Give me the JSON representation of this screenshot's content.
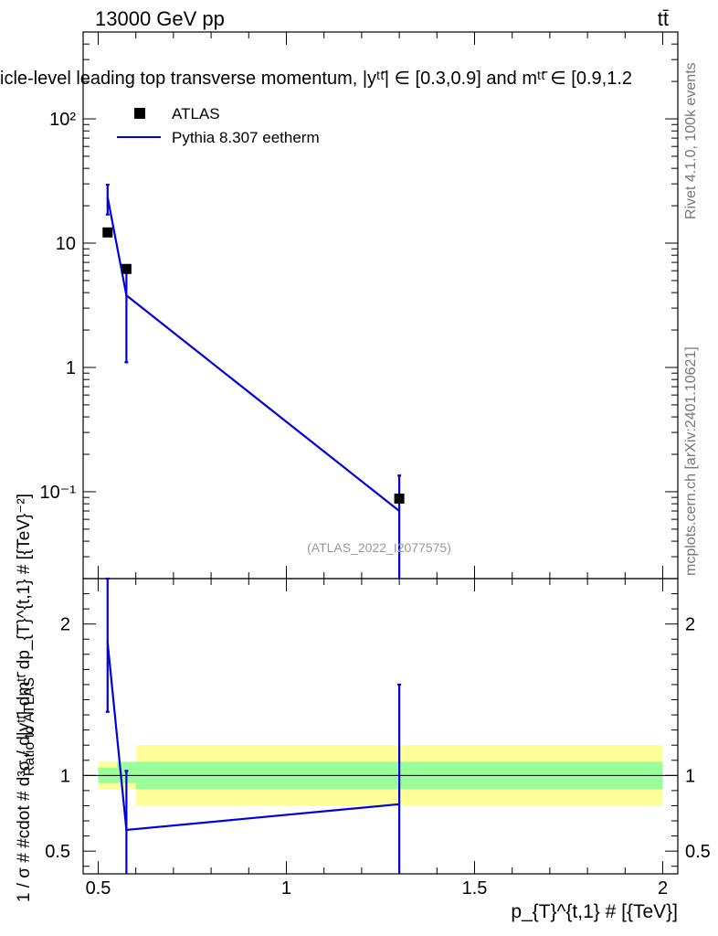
{
  "header": {
    "left": "13000 GeV pp",
    "right": "tt̄"
  },
  "title": "icle-level leading top transverse momentum, |yᵗᵗ̄| ∈ [0.3,0.9] and mᵗᵗ̄ ∈ [0.9,1.2",
  "side_labels": {
    "rivet": "Rivet 4.1.0,  100k events",
    "mcplots": "mcplots.cern.ch [arXiv:2401.10621]"
  },
  "watermark": "(ATLAS_2022_I2077575)",
  "legend": {
    "data_label": "ATLAS",
    "mc_label": "Pythia 8.307 eetherm"
  },
  "colors": {
    "mc_line": "#0000dd",
    "band_inner": "#99ff99",
    "band_outer": "#ffff99",
    "data_marker": "#000000"
  },
  "chart_data": [
    {
      "type": "scatter",
      "panel": "main",
      "ylabel": "1 / σ # #cdot # d³σ / d|yᵗᵗ̄| dmᵗᵗ̄ dp_{T}^{t,1} # [{TeV}⁻²]",
      "yscale": "log",
      "ylim": [
        0.02,
        500
      ],
      "xlim": [
        0.46,
        2.04
      ],
      "ytick_labels": [
        "10⁻¹",
        "1",
        "10",
        "10²"
      ],
      "yticks": [
        0.1,
        1,
        10,
        100
      ],
      "series": [
        {
          "name": "ATLAS",
          "style": "markers",
          "x": [
            0.525,
            0.575,
            1.3
          ],
          "y": [
            12.2,
            6.2,
            0.088
          ]
        },
        {
          "name": "Pythia 8.307 eetherm",
          "style": "line",
          "x": [
            0.525,
            0.575,
            1.3
          ],
          "y": [
            23.5,
            3.8,
            0.07
          ],
          "err_low": [
            17.0,
            1.1,
            0.0
          ],
          "err_high": [
            29.5,
            6.5,
            0.135
          ]
        }
      ]
    },
    {
      "type": "line",
      "panel": "ratio",
      "ylabel": "Ratio to ATLAS",
      "xlabel": "p_{T}^{t,1} # [{TeV}]",
      "xlim": [
        0.46,
        2.04
      ],
      "ylim": [
        0.35,
        2.3
      ],
      "xticks": [
        0.5,
        1,
        1.5,
        2
      ],
      "xtick_labels": [
        "0.5",
        "1",
        "1.5",
        "2"
      ],
      "yticks": [
        0.5,
        1,
        2
      ],
      "ytick_labels": [
        "0.5",
        "1",
        "2"
      ],
      "bands": [
        {
          "x0": 0.5,
          "x1": 0.55,
          "inner": [
            0.95,
            1.05
          ],
          "outer": [
            0.91,
            1.09
          ]
        },
        {
          "x0": 0.55,
          "x1": 0.6,
          "inner": [
            0.95,
            1.09
          ],
          "outer": [
            0.91,
            1.09
          ]
        },
        {
          "x0": 0.6,
          "x1": 2.0,
          "inner": [
            0.91,
            1.09
          ],
          "outer": [
            0.8,
            1.2
          ]
        }
      ],
      "series": [
        {
          "name": "Pythia 8.307 eetherm / ATLAS",
          "x": [
            0.525,
            0.575,
            1.3
          ],
          "y": [
            1.88,
            0.64,
            0.81
          ],
          "err_low": [
            1.42,
            0.0,
            0.0
          ],
          "err_high": [
            2.3,
            1.03,
            1.6
          ]
        }
      ]
    }
  ]
}
